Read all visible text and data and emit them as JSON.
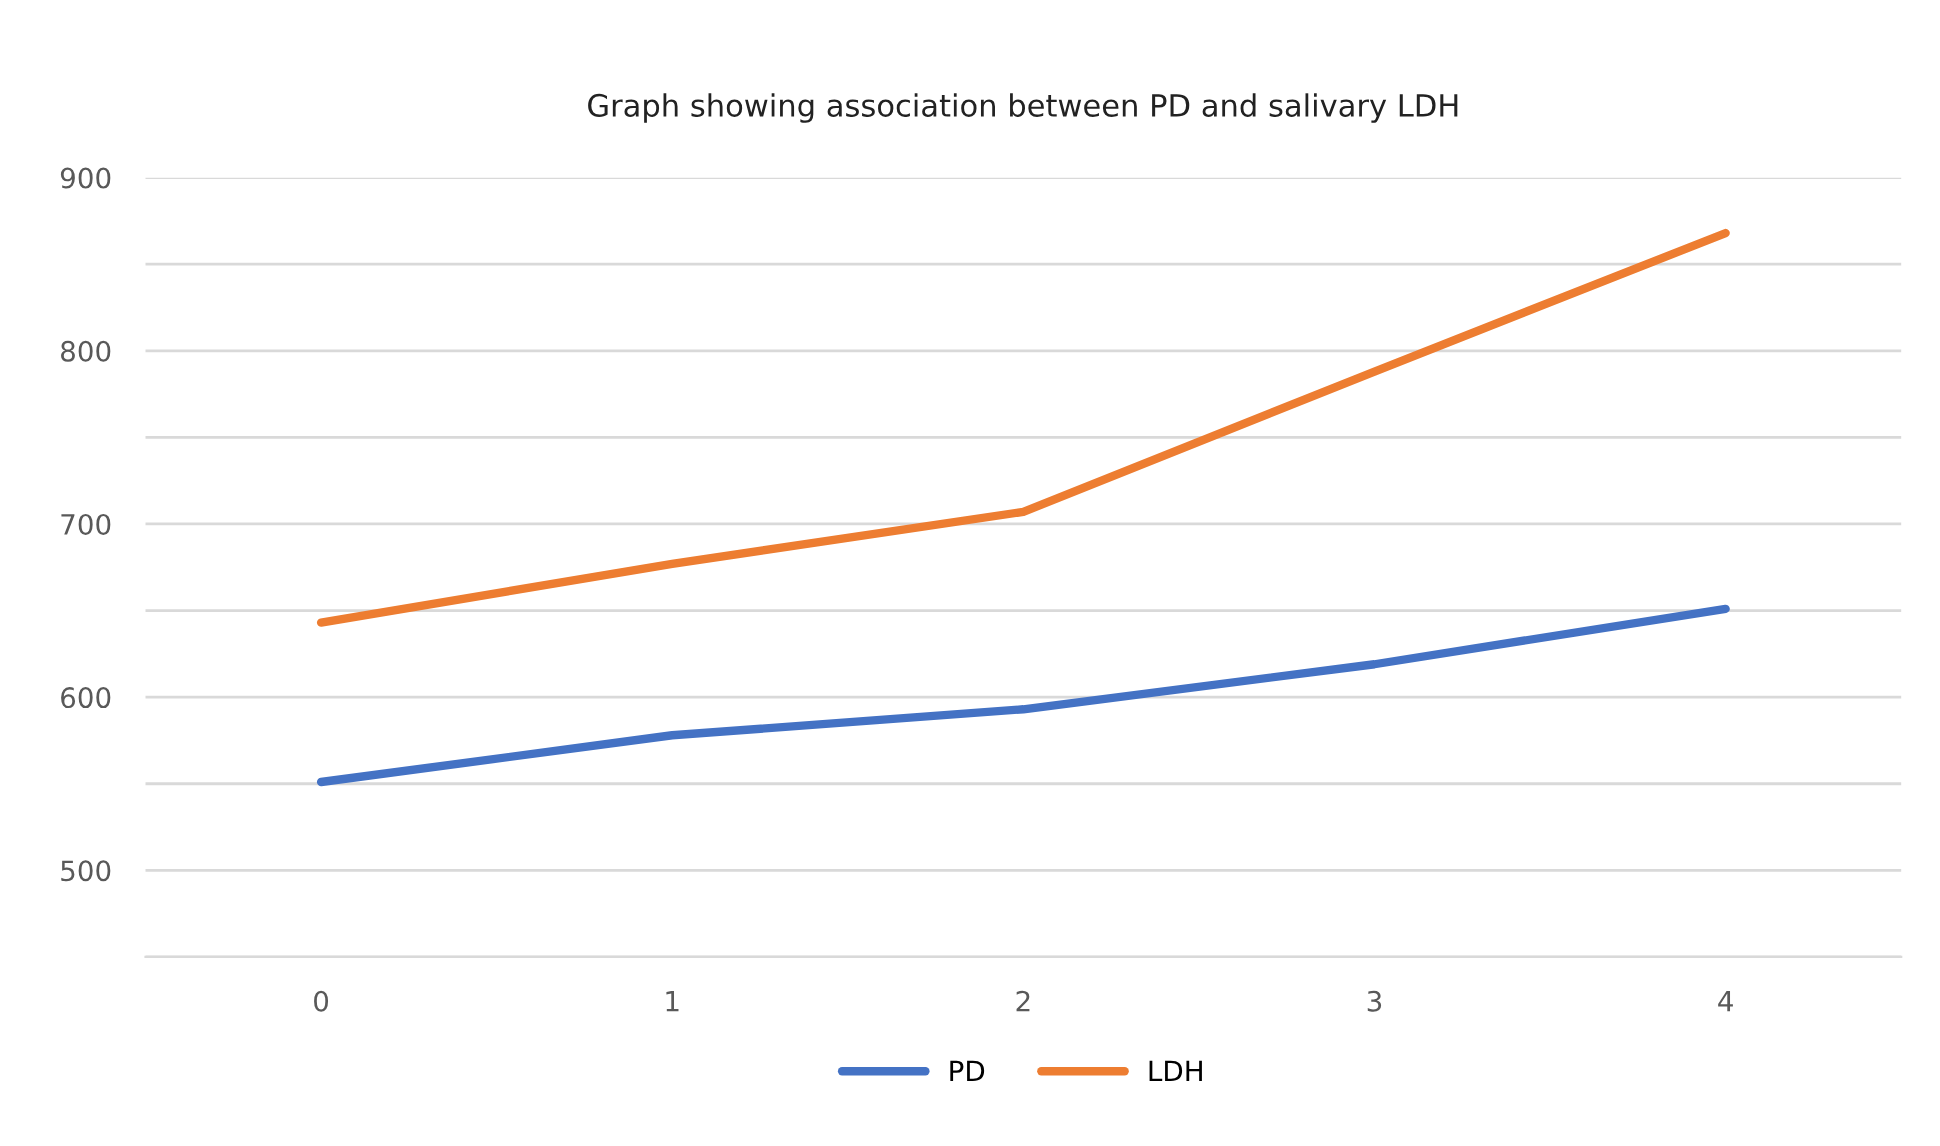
{
  "chart_data": {
    "type": "line",
    "title": "Graph showing association between PD and salivary LDH",
    "categories": [
      "0",
      "1",
      "2",
      "3",
      "4"
    ],
    "series": [
      {
        "name": "PD",
        "color": "#4472c4",
        "values": [
          551,
          578,
          593,
          619,
          651
        ]
      },
      {
        "name": "LDH",
        "color": "#ed7d31",
        "values": [
          643,
          677,
          707,
          788,
          868
        ]
      }
    ],
    "ylim": [
      450,
      900
    ],
    "yticks": [
      {
        "value": 450,
        "label": null
      },
      500,
      {
        "value": 550,
        "label": null
      },
      600,
      {
        "value": 650,
        "label": null
      },
      700,
      {
        "value": 750,
        "label": null
      },
      800,
      {
        "value": 850,
        "label": null
      },
      900
    ],
    "grid": "y",
    "legend": "bottom",
    "marker": "none",
    "line_style": "solid"
  }
}
